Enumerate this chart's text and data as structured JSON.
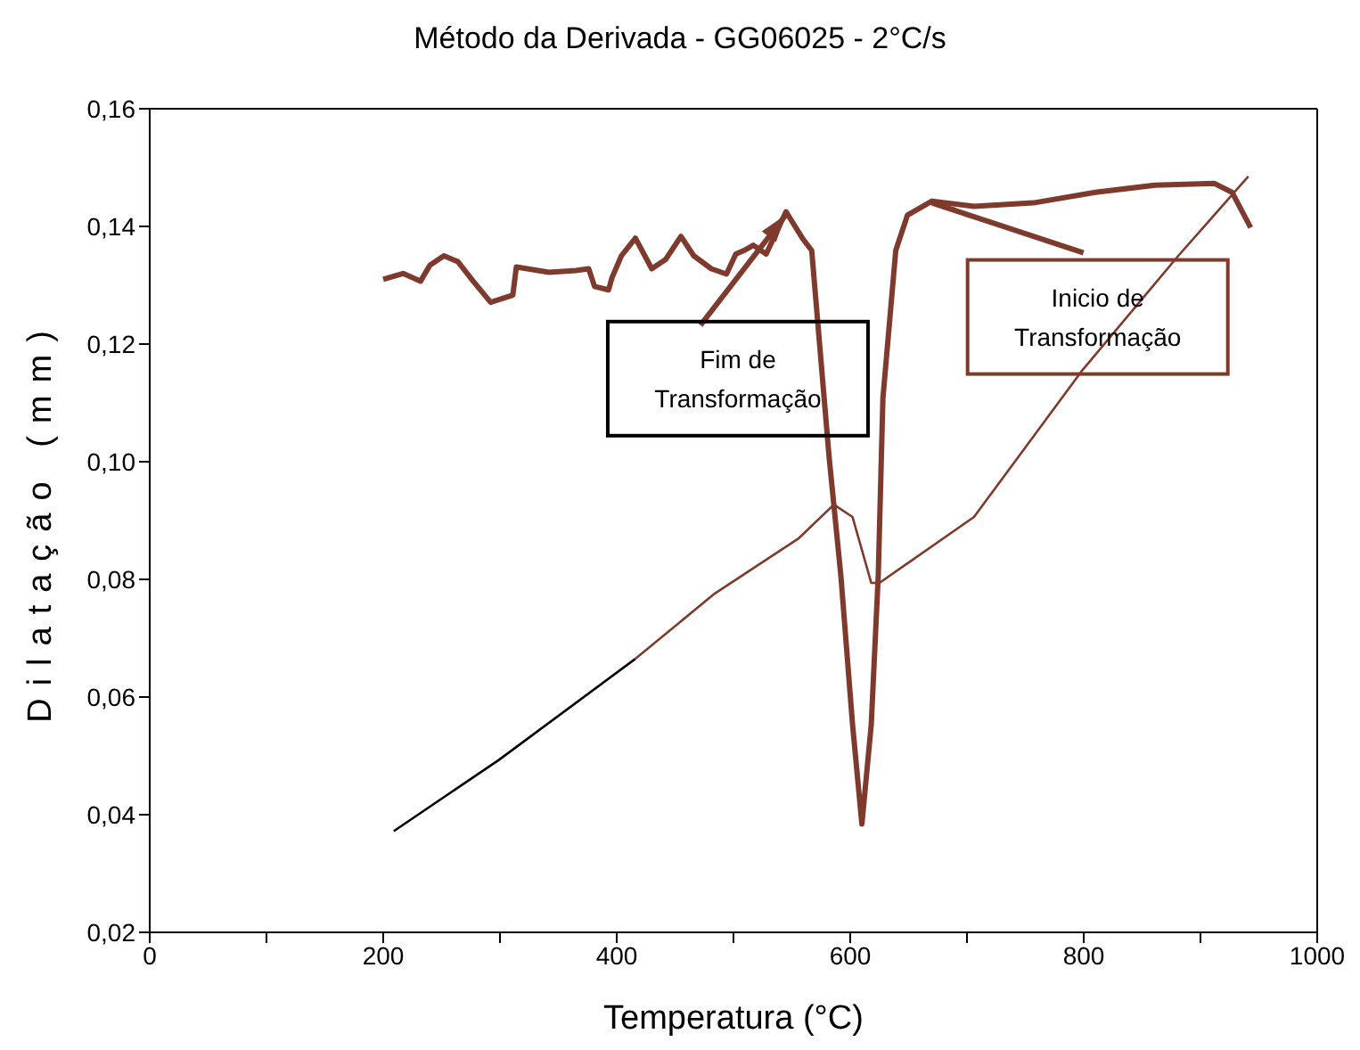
{
  "chart_data": {
    "type": "line",
    "title": "Método da Derivada - GG06025 - 2°C/s",
    "xlabel": "Temperatura (°C)",
    "ylabel": "Dilatação (mm)",
    "xlim": [
      0,
      1000
    ],
    "xticks": [
      0,
      {
        "value": 100,
        "label": null
      },
      200,
      {
        "value": 300,
        "label": null
      },
      400,
      {
        "value": 500,
        "label": null
      },
      600,
      {
        "value": 700,
        "label": null
      },
      800,
      {
        "value": 900,
        "label": null
      },
      1000
    ],
    "ylim": [
      0.02,
      0.16
    ],
    "yticks": [
      {
        "value": 0.02,
        "label": "0,02"
      },
      {
        "value": 0.04,
        "label": "0,04"
      },
      {
        "value": 0.06,
        "label": "0,06"
      },
      {
        "value": 0.08,
        "label": "0,08"
      },
      {
        "value": 0.1,
        "label": "0,10"
      },
      {
        "value": 0.12,
        "label": "0,12"
      },
      {
        "value": 0.14,
        "label": "0,14"
      },
      {
        "value": 0.16,
        "label": "0,16"
      }
    ],
    "marker": "none",
    "line_style": "solid",
    "series": [
      {
        "color": "#7e3a2c",
        "x": [
          200,
          217,
          232,
          240,
          252,
          264,
          277,
          292,
          311,
          314,
          342,
          365,
          376,
          381,
          393,
          396,
          404,
          416,
          430,
          442,
          455,
          466,
          481,
          494,
          502,
          509,
          517,
          528,
          545,
          559,
          567,
          582,
          592,
          602,
          610,
          618,
          624,
          628,
          639,
          649,
          670,
          706,
          757,
          810,
          861,
          912,
          927,
          943
        ],
        "values": [
          0.131,
          0.132,
          0.1307,
          0.1334,
          0.135,
          0.134,
          0.1307,
          0.1271,
          0.1283,
          0.1331,
          0.1322,
          0.1325,
          0.1328,
          0.1298,
          0.1292,
          0.1313,
          0.135,
          0.138,
          0.1328,
          0.1344,
          0.1383,
          0.135,
          0.1328,
          0.1319,
          0.1353,
          0.1359,
          0.1368,
          0.1353,
          0.1425,
          0.138,
          0.1359,
          0.1006,
          0.0806,
          0.0553,
          0.0384,
          0.0553,
          0.0806,
          0.1108,
          0.1359,
          0.1419,
          0.1443,
          0.1434,
          0.144,
          0.1458,
          0.147,
          0.1473,
          0.1458,
          0.1398
        ]
      },
      {
        "color": "#000000",
        "x": [
          209,
          299,
          416
        ],
        "values": [
          0.0372,
          0.0493,
          0.0665
        ]
      },
      {
        "color": "#7e3a2c",
        "x": [
          416,
          484,
          556,
          586,
          602,
          618,
          625,
          706,
          799,
          881,
          941
        ],
        "values": [
          0.0665,
          0.0776,
          0.087,
          0.0927,
          0.0906,
          0.0794,
          0.0794,
          0.0906,
          0.1156,
          0.135,
          0.1485
        ]
      }
    ],
    "annotations": [
      {
        "text": "Fim de Transformação",
        "x": 545,
        "y": 0.142
      },
      {
        "text": "Inicio de Transformação",
        "x": 670,
        "y": 0.144
      }
    ]
  }
}
